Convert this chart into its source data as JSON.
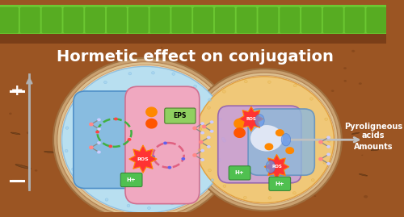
{
  "title": "Hormetic effect on conjugation",
  "title_color": "#ffffff",
  "title_fontsize": 14,
  "bg_soil_color": "#9B5523",
  "bg_grass_color": "#6CC832",
  "grass_dark": "#4a9a18",
  "axis_color": "#a8a8a8",
  "plus_label": "+",
  "minus_label": "-",
  "right_label1": "Pyroligneous",
  "right_label2": "acids",
  "right_label3": "Amounts",
  "left_cell_bg": "#b8dff0",
  "left_ring_outer": "#d4aa80",
  "left_ring_mid": "#e8c898",
  "left_ring_inner": "#c0a070",
  "left_bact1_color": "#88bce0",
  "left_bact2_color": "#f0a8c0",
  "right_cell_bg": "#f0c878",
  "right_ring_outer": "#d4aa80",
  "right_ring_mid": "#e8c898",
  "right_bact1_color": "#c8a0d8",
  "right_bact2_color": "#90b8d8",
  "eps_label": "EPS",
  "ros_label": "ROS",
  "h_label": "H+",
  "connector_color": "#d4aa80",
  "stone_color": "#7a4820",
  "stone_positions": [
    [
      0.06,
      0.78,
      0.042,
      0.055,
      15
    ],
    [
      0.13,
      0.71,
      0.032,
      0.04,
      5
    ],
    [
      0.22,
      0.82,
      0.03,
      0.038,
      -10
    ],
    [
      0.35,
      0.76,
      0.028,
      0.04,
      20
    ],
    [
      0.44,
      0.82,
      0.022,
      0.03,
      0
    ],
    [
      0.52,
      0.75,
      0.03,
      0.04,
      -5
    ],
    [
      0.6,
      0.8,
      0.025,
      0.035,
      10
    ],
    [
      0.68,
      0.73,
      0.032,
      0.042,
      -15
    ],
    [
      0.78,
      0.8,
      0.025,
      0.032,
      5
    ],
    [
      0.86,
      0.76,
      0.03,
      0.038,
      -8
    ],
    [
      0.94,
      0.82,
      0.022,
      0.028,
      12
    ],
    [
      0.97,
      0.7,
      0.02,
      0.028,
      -5
    ],
    [
      0.04,
      0.62,
      0.025,
      0.032,
      10
    ],
    [
      0.92,
      0.62,
      0.02,
      0.025,
      -10
    ]
  ]
}
